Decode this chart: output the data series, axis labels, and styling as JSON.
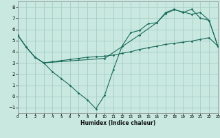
{
  "xlabel": "Humidex (Indice chaleur)",
  "bg_color": "#c8e8e0",
  "grid_color": "#a0c8c0",
  "line_color": "#1a6b5a",
  "xlim": [
    0,
    23
  ],
  "ylim": [
    -1.5,
    8.5
  ],
  "xticks": [
    0,
    1,
    2,
    3,
    4,
    5,
    6,
    7,
    8,
    9,
    10,
    11,
    12,
    13,
    14,
    15,
    16,
    17,
    18,
    19,
    20,
    21,
    22,
    23
  ],
  "yticks": [
    -1,
    0,
    1,
    2,
    3,
    4,
    5,
    6,
    7,
    8
  ],
  "curve1_x": [
    0,
    1,
    2,
    3,
    4,
    5,
    6,
    7,
    8,
    9,
    10,
    11,
    12,
    13,
    14,
    15,
    16,
    17,
    18,
    19,
    20,
    21,
    22,
    23
  ],
  "curve1_y": [
    5.5,
    4.4,
    3.5,
    3.0,
    2.2,
    1.6,
    1.0,
    0.3,
    -0.3,
    -1.1,
    0.1,
    2.4,
    4.5,
    5.7,
    5.9,
    6.5,
    6.6,
    7.5,
    7.8,
    7.5,
    7.8,
    7.0,
    6.8,
    4.5
  ],
  "curve2_x": [
    0,
    1,
    2,
    3,
    10,
    14,
    16,
    17,
    18,
    19,
    20,
    21,
    22,
    23
  ],
  "curve2_y": [
    5.5,
    4.4,
    3.5,
    3.0,
    3.4,
    5.5,
    6.6,
    7.4,
    7.75,
    7.55,
    7.35,
    7.5,
    6.8,
    4.5
  ],
  "curve3_x": [
    0,
    1,
    2,
    3,
    4,
    5,
    6,
    7,
    8,
    9,
    10,
    11,
    12,
    13,
    14,
    15,
    16,
    17,
    18,
    19,
    20,
    21,
    22,
    23
  ],
  "curve3_y": [
    5.5,
    4.4,
    3.5,
    3.0,
    3.1,
    3.2,
    3.3,
    3.4,
    3.5,
    3.55,
    3.6,
    3.7,
    3.85,
    4.0,
    4.2,
    4.35,
    4.5,
    4.65,
    4.75,
    4.85,
    4.95,
    5.1,
    5.25,
    4.5
  ]
}
